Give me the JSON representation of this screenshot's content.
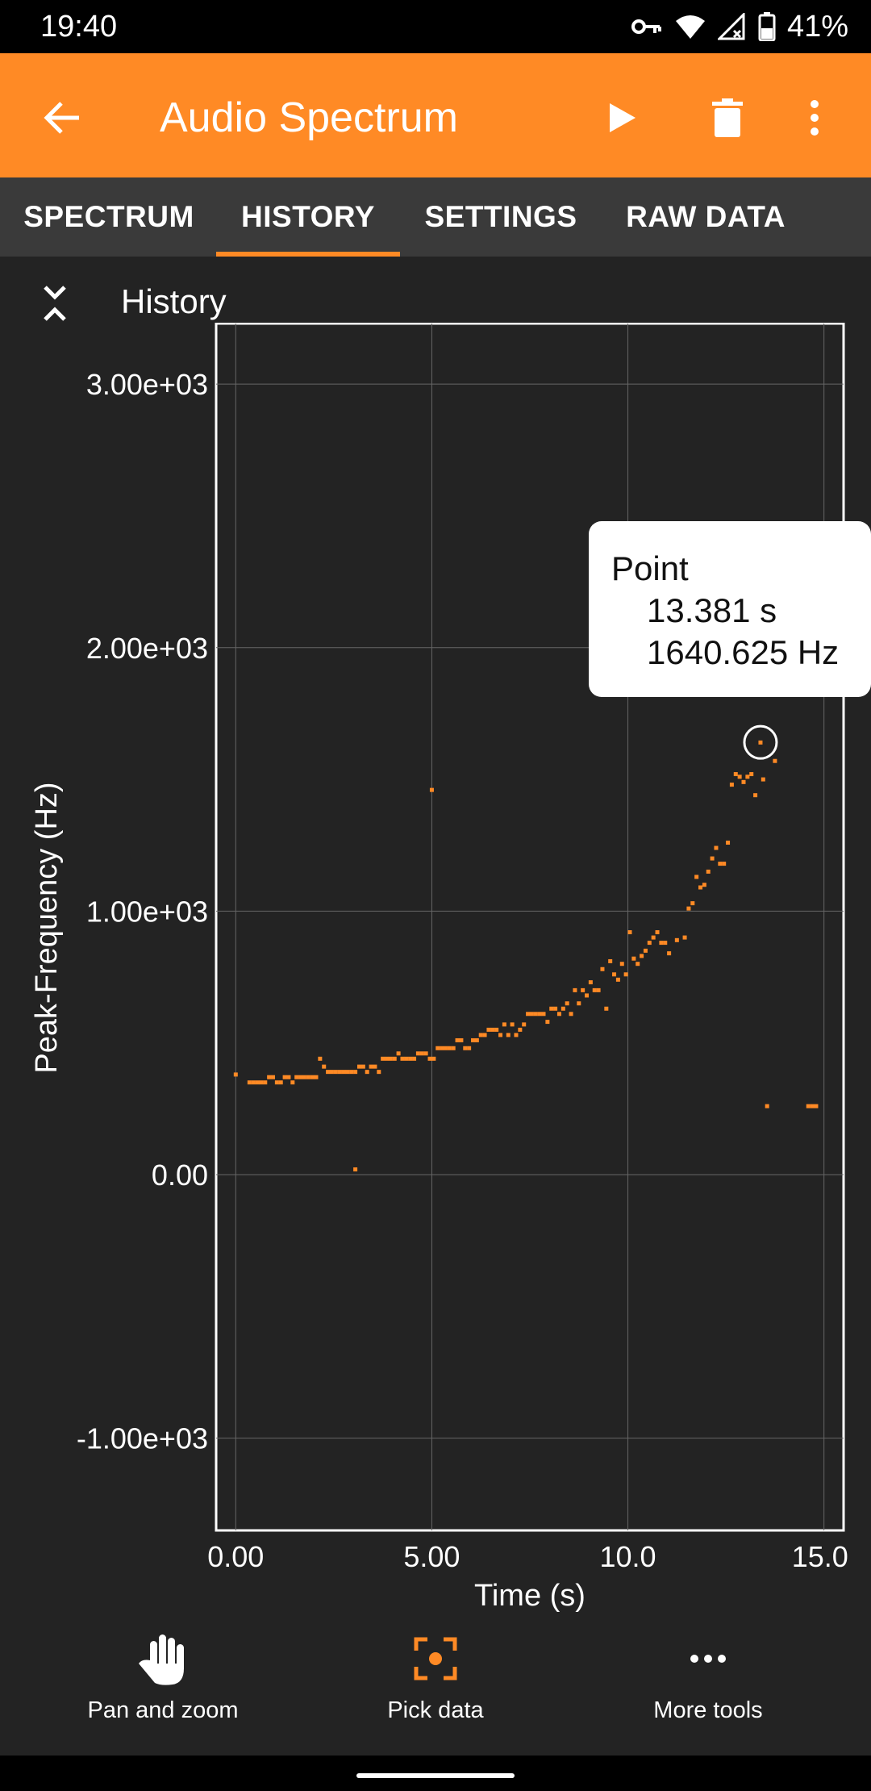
{
  "status": {
    "time": "19:40",
    "battery": "41%"
  },
  "app_bar": {
    "title": "Audio Spectrum"
  },
  "tabs": [
    {
      "label": "SPECTRUM",
      "active": false
    },
    {
      "label": "HISTORY",
      "active": true
    },
    {
      "label": "SETTINGS",
      "active": false
    },
    {
      "label": "RAW DATA",
      "active": false
    }
  ],
  "section": {
    "title": "History"
  },
  "tooltip": {
    "title": "Point",
    "x_text": "13.381 s",
    "y_text": "1640.625 Hz"
  },
  "colors": {
    "accent": "#ff8a25",
    "background": "#232323",
    "tabbar": "#3a3a3a"
  },
  "chart_data": {
    "type": "scatter",
    "xlabel": "Time (s)",
    "ylabel": "Peak-Frequency (Hz)",
    "xlim": [
      -0.5,
      15.5
    ],
    "ylim": [
      -1350,
      3230
    ],
    "x_ticks": [
      0,
      5,
      10,
      15
    ],
    "x_tick_labels": [
      "0.00",
      "5.00",
      "10.0",
      "15.0"
    ],
    "y_ticks": [
      3000,
      2000,
      1000,
      0,
      -1000
    ],
    "y_tick_labels": [
      "3.00e+03",
      "2.00e+03",
      "1.00e+03",
      "0.00",
      "-1.00e+03"
    ],
    "grid": true,
    "series": [
      {
        "color": "#ff8a25",
        "x": [
          0.0,
          0.35,
          0.45,
          0.55,
          0.65,
          0.75,
          0.85,
          0.95,
          1.05,
          1.15,
          1.25,
          1.35,
          1.45,
          1.55,
          1.65,
          1.75,
          1.85,
          1.95,
          2.05,
          2.15,
          2.25,
          2.35,
          2.45,
          2.55,
          2.65,
          2.75,
          2.85,
          2.95,
          3.05,
          3.15,
          3.25,
          3.35,
          3.45,
          3.55,
          3.65,
          3.75,
          3.85,
          3.95,
          4.05,
          4.15,
          4.25,
          4.35,
          4.45,
          4.55,
          4.65,
          4.75,
          4.85,
          4.95,
          5.05,
          5.15,
          5.25,
          5.35,
          5.45,
          5.55,
          5.65,
          5.75,
          5.85,
          5.95,
          6.05,
          6.15,
          6.25,
          6.35,
          6.45,
          6.55,
          6.65,
          6.75,
          6.85,
          6.95,
          7.05,
          7.15,
          7.25,
          7.35,
          7.45,
          7.55,
          7.65,
          7.75,
          7.85,
          7.95,
          8.05,
          8.15,
          8.25,
          8.35,
          8.45,
          8.55,
          8.65,
          8.75,
          8.85,
          8.95,
          9.05,
          9.15,
          9.25,
          9.35,
          9.45,
          9.55,
          9.65,
          9.75,
          9.85,
          9.95,
          10.05,
          10.15,
          10.25,
          10.35,
          10.45,
          10.55,
          10.65,
          10.75,
          10.85,
          10.95,
          11.05,
          11.25,
          11.45,
          11.55,
          11.65,
          11.75,
          11.85,
          11.95,
          12.05,
          12.15,
          12.25,
          12.35,
          12.45,
          12.55,
          12.65,
          12.75,
          12.85,
          12.95,
          13.05,
          13.15,
          13.25,
          13.381,
          13.45,
          13.55,
          13.75,
          14.6,
          14.7,
          14.8,
          3.05,
          5.0
        ],
        "y": [
          380,
          350,
          350,
          350,
          350,
          350,
          370,
          370,
          350,
          350,
          370,
          370,
          350,
          370,
          370,
          370,
          370,
          370,
          370,
          440,
          410,
          390,
          390,
          390,
          390,
          390,
          390,
          390,
          390,
          410,
          410,
          390,
          410,
          410,
          390,
          440,
          440,
          440,
          440,
          460,
          440,
          440,
          440,
          440,
          460,
          460,
          460,
          440,
          440,
          480,
          480,
          480,
          480,
          480,
          510,
          510,
          480,
          480,
          510,
          510,
          530,
          530,
          550,
          550,
          550,
          530,
          570,
          530,
          570,
          530,
          550,
          570,
          610,
          610,
          610,
          610,
          610,
          580,
          630,
          630,
          610,
          630,
          650,
          610,
          700,
          650,
          700,
          680,
          730,
          700,
          700,
          780,
          630,
          810,
          760,
          740,
          800,
          760,
          920,
          820,
          800,
          830,
          850,
          880,
          900,
          920,
          880,
          880,
          840,
          890,
          900,
          1010,
          1030,
          1130,
          1090,
          1100,
          1150,
          1200,
          1240,
          1180,
          1180,
          1260,
          1480,
          1520,
          1510,
          1490,
          1510,
          1520,
          1440,
          1640,
          1500,
          260,
          1570,
          260,
          260,
          260,
          20,
          1460
        ]
      }
    ],
    "highlighted_point": {
      "x": 13.381,
      "y": 1640.625
    }
  },
  "toolbar": {
    "items": [
      {
        "label": "Pan and zoom",
        "icon": "hand-icon"
      },
      {
        "label": "Pick data",
        "icon": "crosshair-icon"
      },
      {
        "label": "More tools",
        "icon": "more-horizontal-icon"
      }
    ]
  }
}
